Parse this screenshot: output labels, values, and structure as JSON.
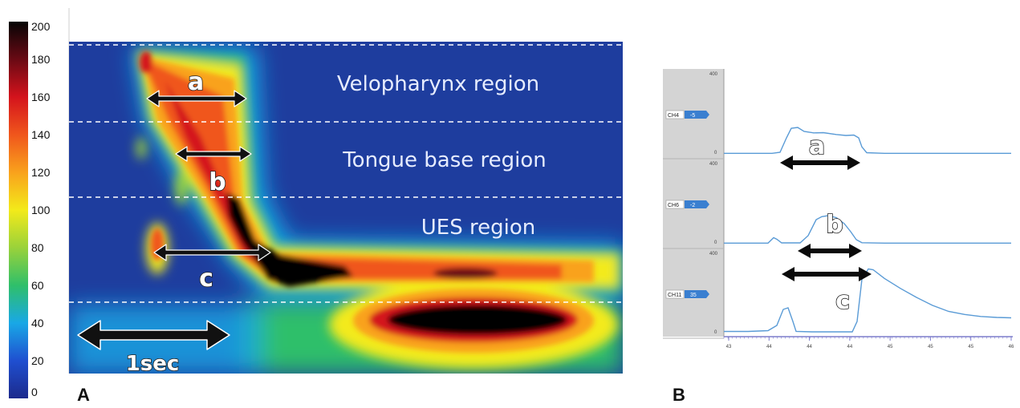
{
  "chart_data": [
    {
      "type": "heatmap",
      "panel_label": "A",
      "colorbar": {
        "ticks": [
          0,
          20,
          40,
          60,
          80,
          100,
          120,
          140,
          160,
          180,
          200
        ],
        "range": [
          0,
          200
        ],
        "colors": [
          "#1c2a8c",
          "#1f4fd0",
          "#19a8e6",
          "#2fbf6a",
          "#9ad23a",
          "#f3ea1a",
          "#f9a21c",
          "#f0561c",
          "#d4131c",
          "#6a0a14",
          "#050505"
        ]
      },
      "regions": [
        "Velopharynx region",
        "Tongue base region",
        "UES region"
      ],
      "annotations": [
        {
          "label": "a"
        },
        {
          "label": "b"
        },
        {
          "label": "c"
        },
        {
          "label": "1sec"
        }
      ]
    },
    {
      "type": "line",
      "panel_label": "B",
      "y_tick_labels": [
        "400",
        "0"
      ],
      "x_tick_labels": [
        "43",
        "44",
        "44",
        "44",
        "45",
        "45",
        "45",
        "46"
      ],
      "line_color": "#5a9bd6",
      "series": [
        {
          "channel": "CH4",
          "channel_value": "-5",
          "annotation": "a",
          "x": [
            0,
            60,
            70,
            78,
            84,
            92,
            100,
            112,
            124,
            140,
            152,
            162,
            168,
            172,
            178,
            200,
            250,
            300,
            358
          ],
          "y": [
            3,
            3,
            8,
            80,
            128,
            132,
            112,
            105,
            106,
            97,
            92,
            94,
            80,
            35,
            6,
            3,
            3,
            3,
            3
          ]
        },
        {
          "channel": "CH6",
          "channel_value": "-2",
          "annotation": "b",
          "x": [
            0,
            55,
            62,
            66,
            72,
            95,
            105,
            115,
            122,
            130,
            140,
            150,
            158,
            165,
            172,
            200,
            250,
            300,
            358
          ],
          "y": [
            3,
            3,
            30,
            22,
            4,
            4,
            40,
            120,
            135,
            140,
            130,
            100,
            60,
            20,
            5,
            3,
            3,
            3,
            3
          ]
        },
        {
          "channel": "CH11",
          "channel_value": "35",
          "annotation": "c",
          "x": [
            0,
            30,
            55,
            66,
            74,
            80,
            86,
            90,
            110,
            160,
            166,
            172,
            180,
            186,
            200,
            220,
            240,
            260,
            280,
            300,
            320,
            340,
            358
          ],
          "y": [
            10,
            10,
            14,
            40,
            120,
            128,
            60,
            10,
            8,
            8,
            60,
            270,
            322,
            318,
            275,
            225,
            180,
            140,
            110,
            95,
            85,
            80,
            78
          ]
        }
      ]
    }
  ]
}
